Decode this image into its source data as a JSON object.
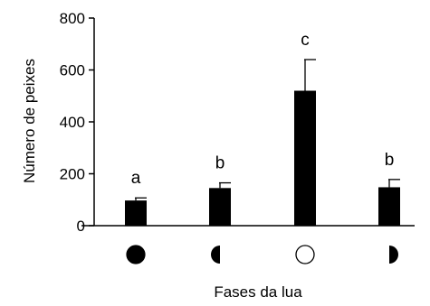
{
  "chart_data": {
    "type": "bar",
    "categories": [
      "new-moon",
      "waxing-crescent",
      "full-moon",
      "waning-crescent"
    ],
    "values": [
      97,
      145,
      520,
      148
    ],
    "errors": [
      10,
      20,
      120,
      30
    ],
    "letters": [
      "a",
      "b",
      "c",
      "b"
    ],
    "xlabel": "Fases da lua",
    "ylabel": "Número de peixes",
    "ylim": [
      0,
      800
    ],
    "yticks": [
      0,
      200,
      400,
      600,
      800
    ],
    "bar_color": "#000000",
    "phase_icons": [
      "new-moon-icon",
      "first-quarter-moon-icon",
      "full-moon-icon",
      "last-quarter-moon-icon"
    ]
  }
}
